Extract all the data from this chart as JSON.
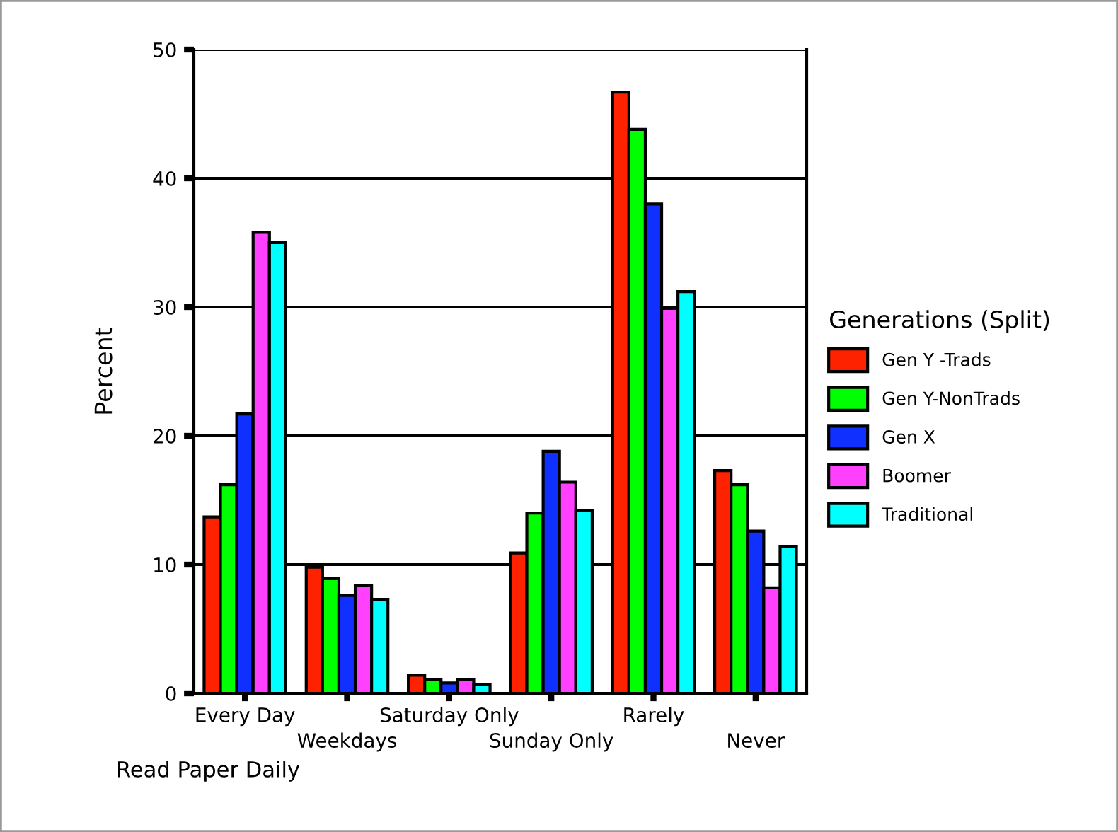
{
  "chart_data": {
    "type": "bar",
    "xlabel": "Read Paper Daily",
    "ylabel": "Percent",
    "legend_title": "Generations (Split)",
    "categories": [
      "Every Day",
      "Weekdays",
      "Saturday Only",
      "Sunday Only",
      "Rarely",
      "Never"
    ],
    "series": [
      {
        "name": "Gen Y -Trads",
        "color": "#ff2200",
        "values": [
          13.7,
          9.8,
          1.4,
          10.9,
          46.7,
          17.3
        ]
      },
      {
        "name": "Gen Y-NonTrads",
        "color": "#00ff00",
        "values": [
          16.2,
          8.9,
          1.1,
          14.0,
          43.8,
          16.2
        ]
      },
      {
        "name": "Gen X",
        "color": "#1030ff",
        "values": [
          21.7,
          7.6,
          0.8,
          18.8,
          38.0,
          12.6
        ]
      },
      {
        "name": "Boomer",
        "color": "#ff40ff",
        "values": [
          35.8,
          8.4,
          1.1,
          16.4,
          29.9,
          8.2
        ]
      },
      {
        "name": "Traditional",
        "color": "#00ffff",
        "values": [
          35.0,
          7.3,
          0.7,
          14.2,
          31.2,
          11.4
        ]
      }
    ],
    "ylim": [
      0,
      50
    ],
    "yticks": [
      0,
      10,
      20,
      30,
      40,
      50
    ],
    "grid": "y",
    "legend": "right"
  }
}
